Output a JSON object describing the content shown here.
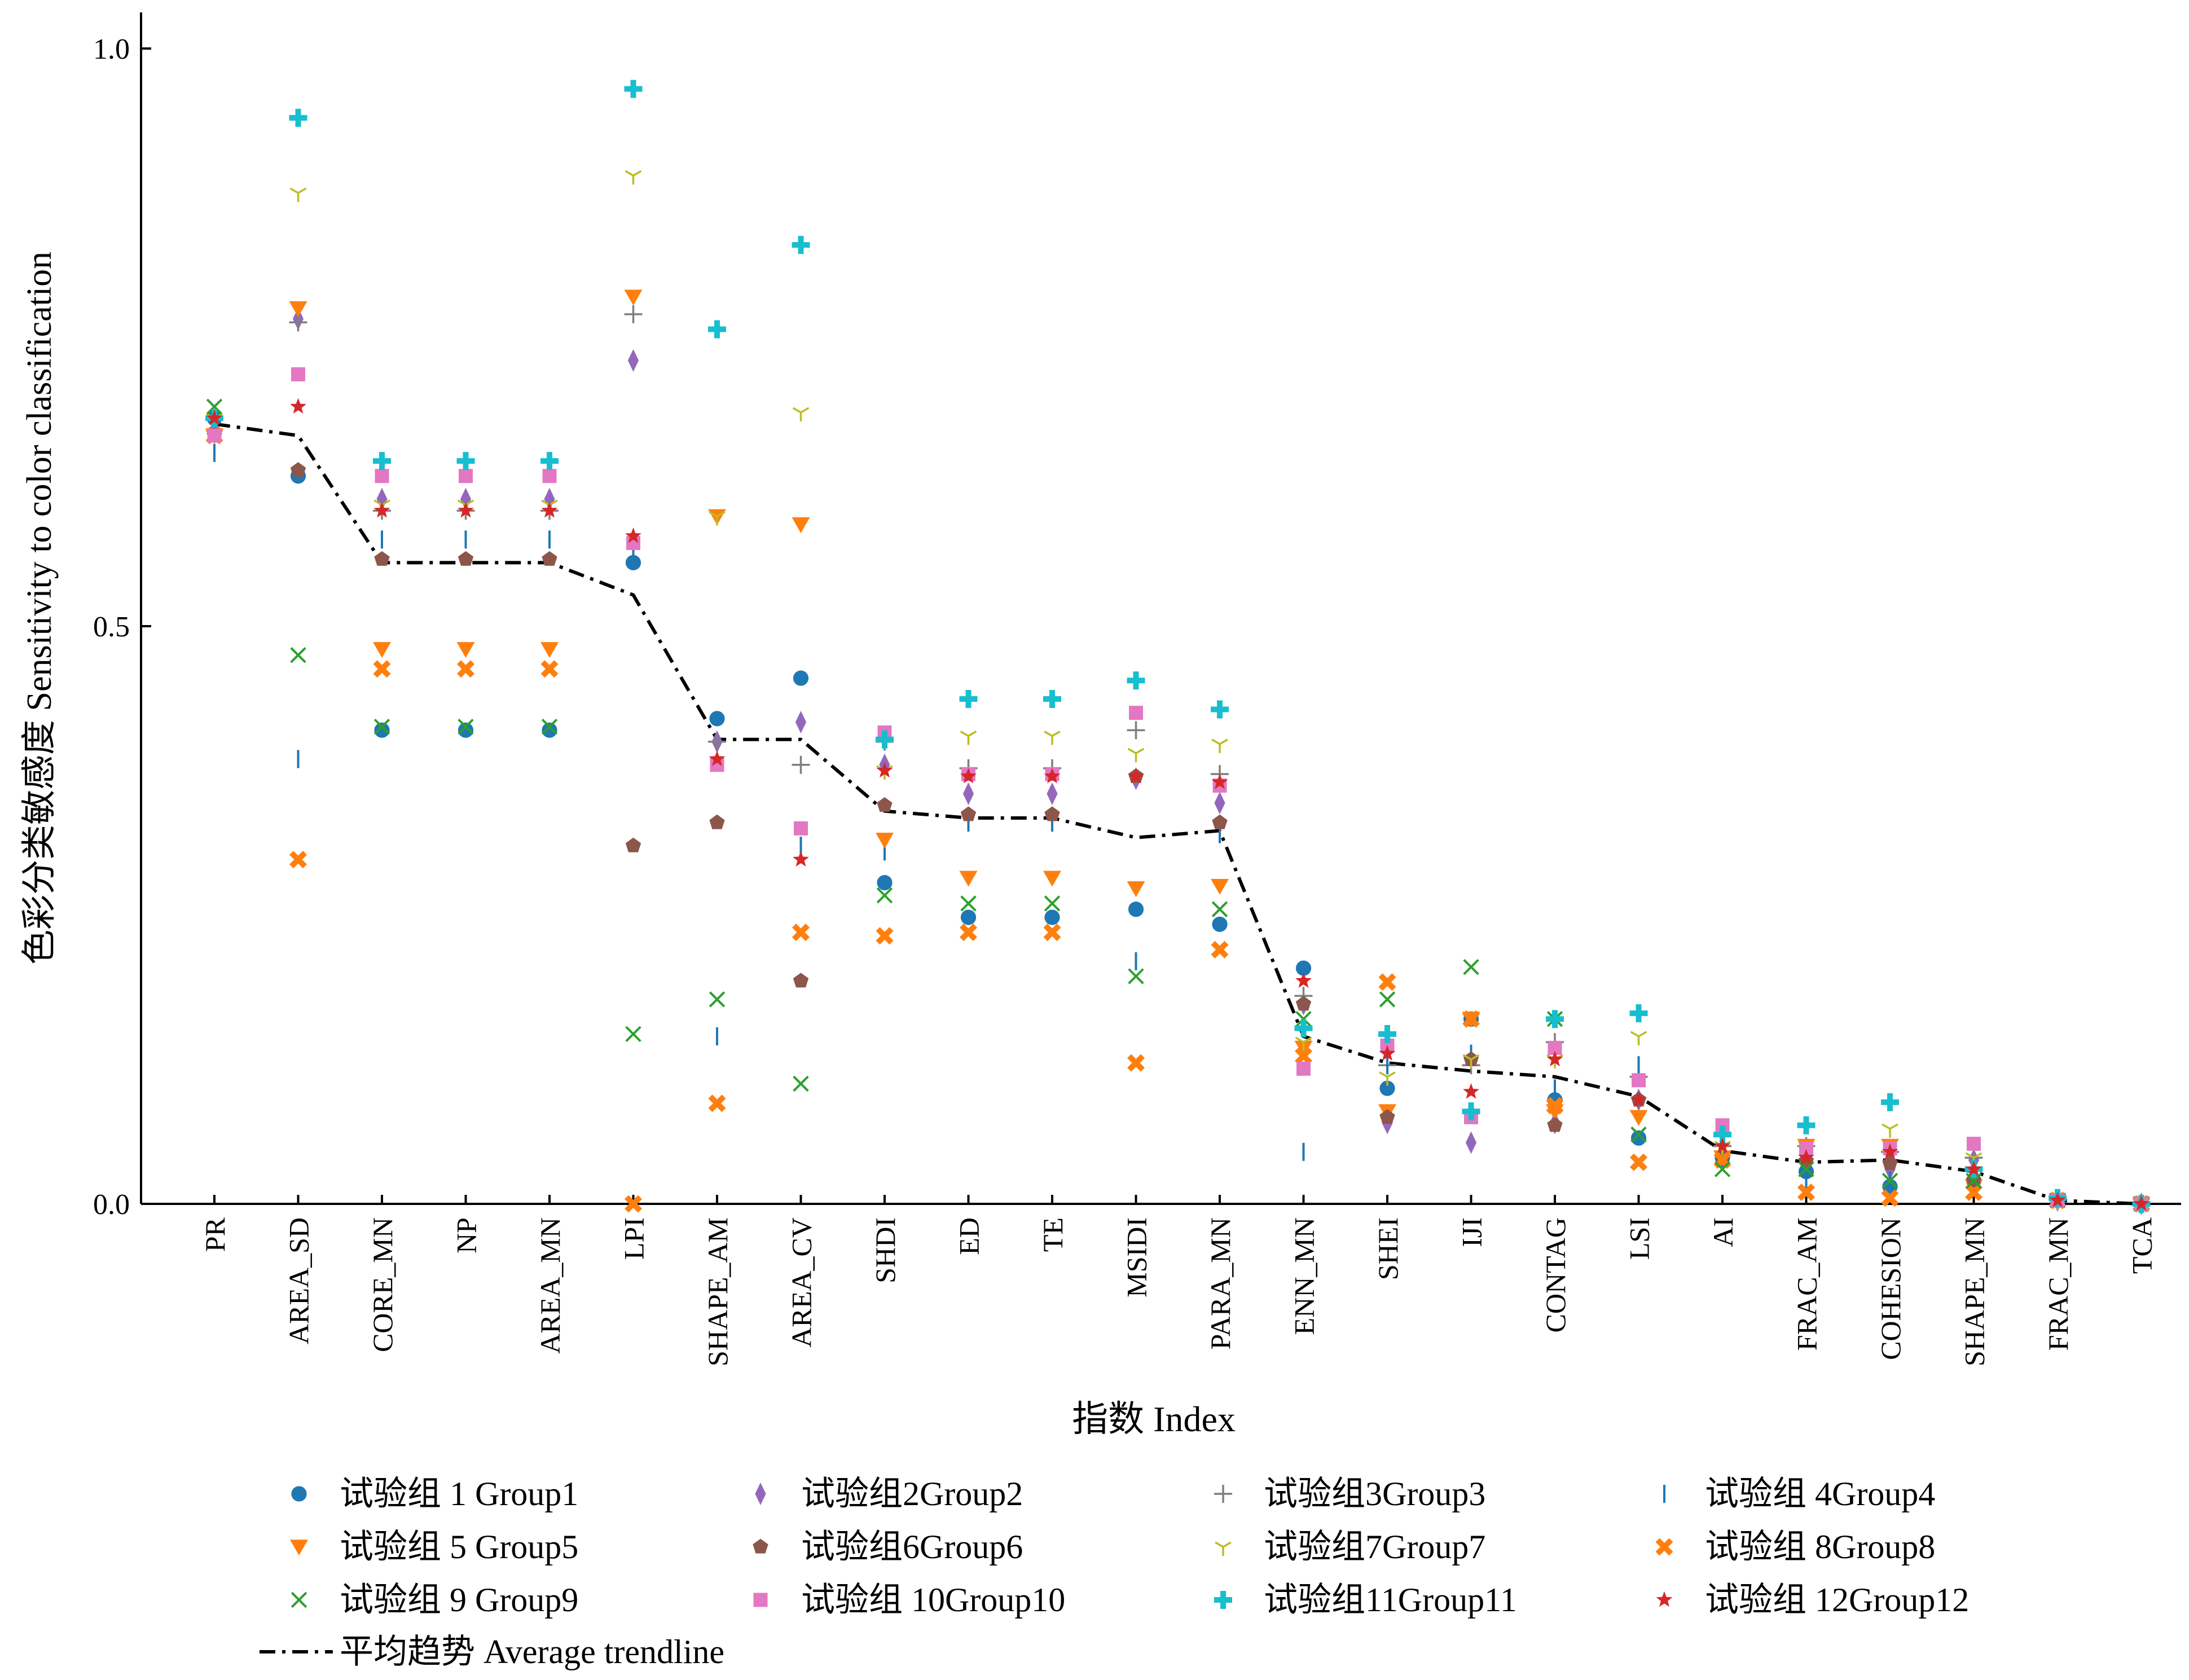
{
  "chart_data": {
    "type": "scatter",
    "xlabel": "指数 Index",
    "ylabel": "色彩分类敏感度 Sensitivity to color classification",
    "ylim": [
      0,
      1.0
    ],
    "yticks": [
      "0.0",
      "0.5",
      "1.0"
    ],
    "categories": [
      "PR",
      "AREA_SD",
      "CORE_MN",
      "NP",
      "AREA_MN",
      "LPI",
      "SHAPE_AM",
      "AREA_CV",
      "SHDI",
      "ED",
      "TE",
      "MSIDI",
      "PARA_MN",
      "ENN_MN",
      "SHEI",
      "IJI",
      "CONTAG",
      "LSI",
      "AI",
      "FRAC_AM",
      "COHESION",
      "SHAPE_MN",
      "FRAC_MN",
      "TCA"
    ],
    "legend_position": "bottom",
    "series": [
      {
        "name": "试验组 1 Group1",
        "color": "#1f77b4",
        "marker": "circle",
        "values": [
          0.68,
          0.63,
          0.41,
          0.41,
          0.41,
          0.555,
          0.42,
          0.455,
          0.278,
          0.248,
          0.248,
          0.255,
          0.242,
          0.204,
          0.1,
          0.16,
          0.09,
          0.057,
          0.04,
          0.028,
          0.015,
          0.02,
          0.003,
          0.0
        ]
      },
      {
        "name": "试验组2Group2",
        "color": "#9467bd",
        "marker": "diamond",
        "values": [
          0.67,
          0.766,
          0.61,
          0.61,
          0.61,
          0.73,
          0.4,
          0.417,
          0.38,
          0.355,
          0.355,
          0.368,
          0.347,
          0.173,
          0.07,
          0.053,
          0.07,
          0.09,
          0.04,
          0.04,
          0.03,
          0.038,
          0.003,
          0.0
        ]
      },
      {
        "name": "试验组3Group3",
        "color": "#7f7f7f",
        "marker": "plus",
        "values": [
          0.68,
          0.763,
          0.6,
          0.6,
          0.6,
          0.77,
          0.4,
          0.38,
          0.4,
          0.377,
          0.377,
          0.41,
          0.372,
          0.18,
          0.12,
          0.12,
          0.14,
          0.11,
          0.05,
          0.05,
          0.045,
          0.04,
          0.005,
          0.0
        ]
      },
      {
        "name": "试验组 4Group4",
        "color": "#1f77b4",
        "marker": "vline",
        "values": [
          0.65,
          0.385,
          0.575,
          0.575,
          0.575,
          0.56,
          0.145,
          0.31,
          0.305,
          0.33,
          0.33,
          0.21,
          0.32,
          0.045,
          0.12,
          0.13,
          0.1,
          0.12,
          0.04,
          0.02,
          0.02,
          0.015,
          0.005,
          0.0
        ]
      },
      {
        "name": "试验组 5 Group5",
        "color": "#ff7f0e",
        "marker": "triangle-down",
        "values": [
          0.665,
          0.775,
          0.48,
          0.48,
          0.48,
          0.785,
          0.595,
          0.588,
          0.315,
          0.282,
          0.282,
          0.273,
          0.275,
          0.135,
          0.08,
          0.16,
          0.08,
          0.075,
          0.04,
          0.05,
          0.05,
          0.015,
          0.003,
          0.0
        ]
      },
      {
        "name": "试验组6Group6",
        "color": "#8c564b",
        "marker": "pentagon",
        "values": [
          0.665,
          0.635,
          0.558,
          0.558,
          0.558,
          0.31,
          0.33,
          0.193,
          0.345,
          0.337,
          0.337,
          0.37,
          0.33,
          0.173,
          0.075,
          0.125,
          0.068,
          0.09,
          0.04,
          0.037,
          0.035,
          0.02,
          0.003,
          0.0
        ]
      },
      {
        "name": "试验组7Group7",
        "color": "#bcbd22",
        "marker": "tri-down",
        "values": [
          0.68,
          0.875,
          0.605,
          0.605,
          0.605,
          0.89,
          0.595,
          0.685,
          0.375,
          0.405,
          0.405,
          0.39,
          0.398,
          0.14,
          0.11,
          0.125,
          0.125,
          0.145,
          0.05,
          0.05,
          0.065,
          0.04,
          0.003,
          0.0
        ]
      },
      {
        "name": "试验组 8Group8",
        "color": "#ff7f0e",
        "marker": "x-thick",
        "values": [
          0.665,
          0.298,
          0.463,
          0.463,
          0.463,
          0.0,
          0.087,
          0.235,
          0.232,
          0.235,
          0.235,
          0.122,
          0.22,
          0.128,
          0.192,
          0.16,
          0.085,
          0.036,
          0.038,
          0.01,
          0.005,
          0.01,
          0.003,
          0.0
        ]
      },
      {
        "name": "试验组 9 Group9",
        "color": "#2ca02c",
        "marker": "x",
        "values": [
          0.69,
          0.475,
          0.413,
          0.413,
          0.413,
          0.147,
          0.177,
          0.104,
          0.267,
          0.26,
          0.26,
          0.197,
          0.255,
          0.16,
          0.177,
          0.205,
          0.16,
          0.06,
          0.03,
          0.03,
          0.02,
          0.02,
          0.003,
          0.0
        ]
      },
      {
        "name": "试验组 10Group10",
        "color": "#e377c2",
        "marker": "square",
        "values": [
          0.665,
          0.718,
          0.63,
          0.63,
          0.63,
          0.572,
          0.38,
          0.325,
          0.408,
          0.372,
          0.372,
          0.425,
          0.362,
          0.117,
          0.137,
          0.075,
          0.135,
          0.107,
          0.068,
          0.048,
          0.048,
          0.052,
          0.003,
          0.0
        ]
      },
      {
        "name": "试验组11Group11",
        "color": "#17becf",
        "marker": "plus-thick",
        "values": [
          0.68,
          0.94,
          0.643,
          0.643,
          0.643,
          0.965,
          0.757,
          0.83,
          0.402,
          0.437,
          0.437,
          0.453,
          0.428,
          0.152,
          0.147,
          0.08,
          0.16,
          0.165,
          0.06,
          0.068,
          0.088,
          0.03,
          0.005,
          0.0
        ]
      },
      {
        "name": "试验组 12Group12",
        "color": "#d62728",
        "marker": "star",
        "values": [
          0.68,
          0.69,
          0.6,
          0.6,
          0.6,
          0.578,
          0.385,
          0.298,
          0.375,
          0.37,
          0.37,
          0.37,
          0.365,
          0.193,
          0.13,
          0.097,
          0.125,
          0.09,
          0.05,
          0.04,
          0.045,
          0.03,
          0.003,
          0.0
        ]
      }
    ],
    "trendline": {
      "name": "平均趋势 Average trendline",
      "color": "#000000",
      "style": "dash-dot",
      "values": [
        0.675,
        0.665,
        0.555,
        0.555,
        0.555,
        0.527,
        0.402,
        0.402,
        0.34,
        0.334,
        0.334,
        0.317,
        0.323,
        0.145,
        0.122,
        0.115,
        0.11,
        0.093,
        0.046,
        0.036,
        0.038,
        0.028,
        0.003,
        0.0
      ]
    }
  }
}
